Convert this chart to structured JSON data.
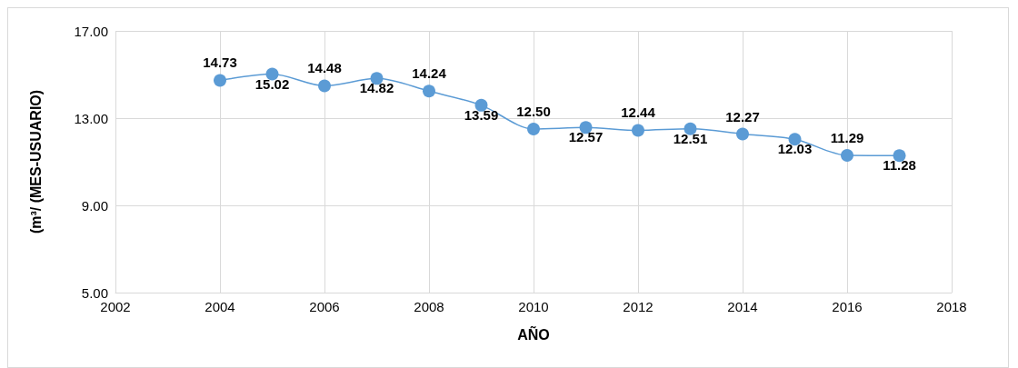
{
  "chart_data": {
    "type": "line",
    "xlabel": "AÑO",
    "ylabel": "(m³/ (MES-USUARIO)",
    "x": [
      2004,
      2005,
      2006,
      2007,
      2008,
      2009,
      2010,
      2011,
      2012,
      2013,
      2014,
      2015,
      2016,
      2017
    ],
    "series": [
      {
        "color": "#5b9bd5",
        "values": [
          14.73,
          15.02,
          14.48,
          14.82,
          14.24,
          13.59,
          12.5,
          12.57,
          12.44,
          12.51,
          12.27,
          12.03,
          11.29,
          11.28
        ],
        "value_labels": [
          "14.73",
          "15.02",
          "14.48",
          "14.82",
          "14.24",
          "13.59",
          "12.50",
          "12.57",
          "12.44",
          "12.51",
          "12.27",
          "12.03",
          "11.29",
          "11.28"
        ]
      }
    ],
    "xlim": [
      2002,
      2018
    ],
    "xticks": [
      2002,
      2004,
      2006,
      2008,
      2010,
      2012,
      2014,
      2016,
      2018
    ],
    "ylim": [
      5,
      17
    ],
    "yticks": [
      {
        "value": 5,
        "label": "5.00"
      },
      {
        "value": 9,
        "label": "9.00"
      },
      {
        "value": 13,
        "label": "13.00"
      },
      {
        "value": 17,
        "label": "17.00"
      }
    ],
    "grid": true,
    "marker": "circle"
  }
}
